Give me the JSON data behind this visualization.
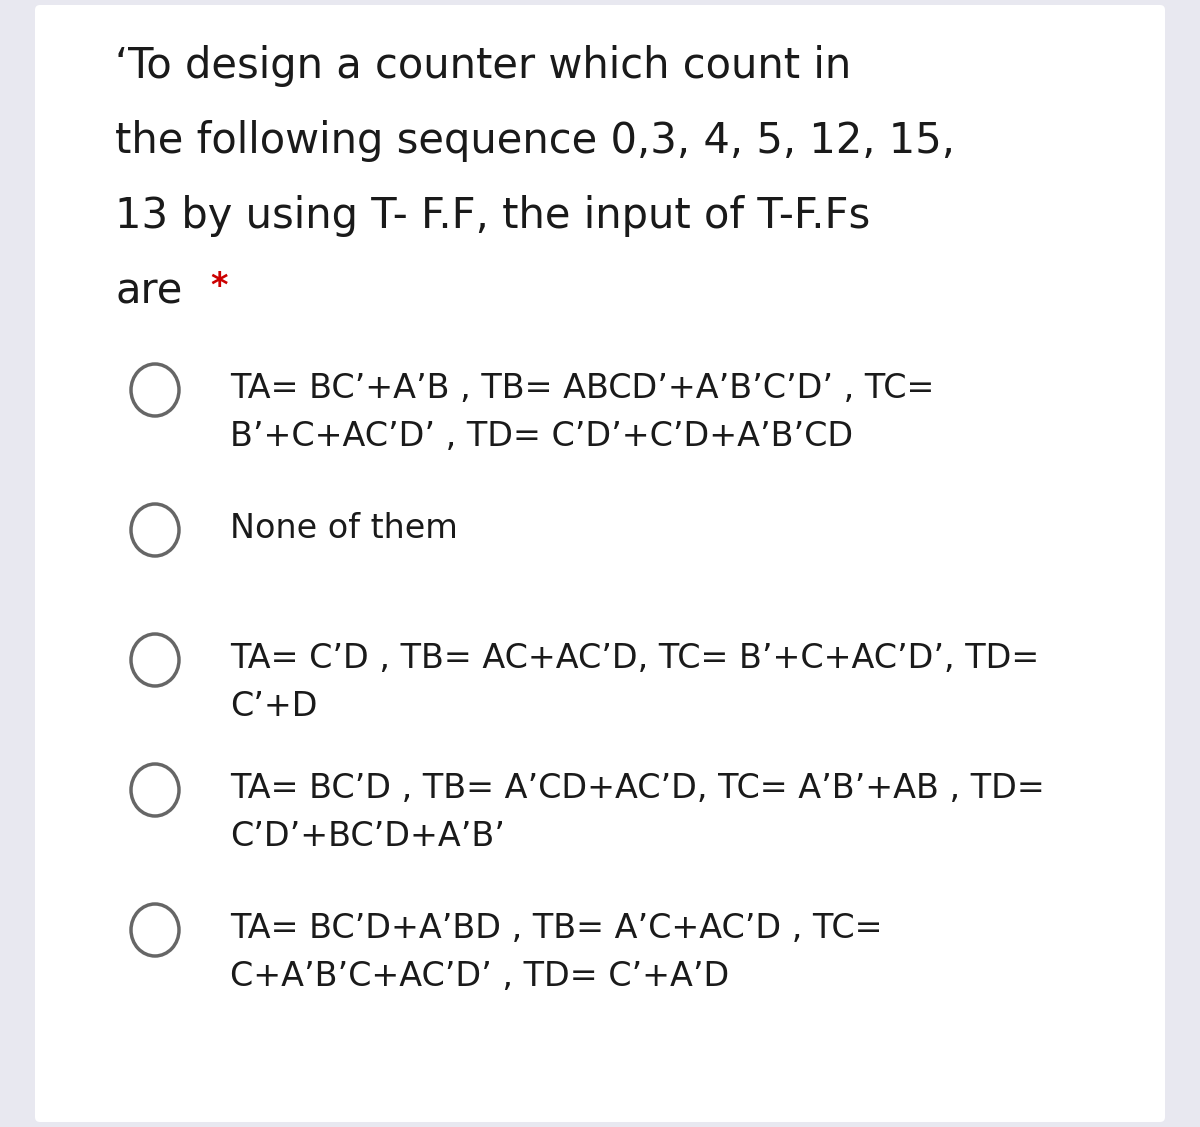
{
  "bg_color": "#e8e8f0",
  "content_bg": "#ffffff",
  "title_lines": [
    "‘To design a counter which count in",
    "the following sequence 0,3, 4, 5, 12, 15,",
    "13 by using T- F.F, the input of T-F.Fs",
    "are"
  ],
  "asterisk": "*",
  "options": [
    {
      "line1": "TA= BC’+A’B , TB= ABCD’+A’B’C’D’ , TC=",
      "line2": "B’+C+AC’D’ , TD= C’D’+C’D+A’B’CD"
    },
    {
      "line1": "None of them",
      "line2": null
    },
    {
      "line1": "TA= C’D , TB= AC+AC’D, TC= B’+C+AC’D’, TD=",
      "line2": "C’+D"
    },
    {
      "line1": "TA= BC’D , TB= A’CD+AC’D, TC= A’B’+AB , TD=",
      "line2": "C’D’+BC’D+A’B’"
    },
    {
      "line1": "TA= BC’D+A’BD , TB= A’C+AC’D , TC=",
      "line2": "C+A’B’C+AC’D’ , TD= C’+A’D"
    }
  ],
  "font_size_title": 30,
  "font_size_option": 24,
  "font_size_asterisk": 24,
  "text_color": "#1a1a1a",
  "asterisk_color": "#cc0000",
  "circle_color": "#666666",
  "circle_linewidth": 2.5
}
